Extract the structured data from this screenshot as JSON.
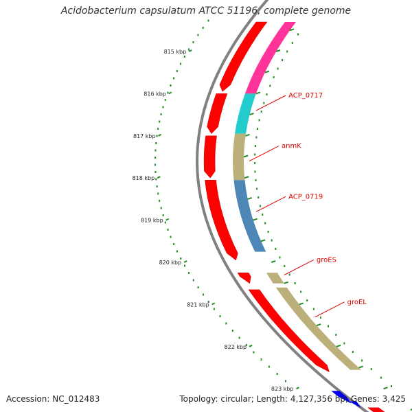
{
  "header": {
    "title": "Acidobacterium capsulatum ATCC 51196, complete genome"
  },
  "footer": {
    "accession": "Accession: NC_012483",
    "summary": "Topology: circular; Length: 4,127,356 bp; Genes: 3,425"
  },
  "ticks": [
    {
      "label": "815 kbp",
      "kbp": 815
    },
    {
      "label": "816 kbp",
      "kbp": 816
    },
    {
      "label": "817 kbp",
      "kbp": 817
    },
    {
      "label": "818 kbp",
      "kbp": 818
    },
    {
      "label": "819 kbp",
      "kbp": 819
    },
    {
      "label": "820 kbp",
      "kbp": 820
    },
    {
      "label": "821 kbp",
      "kbp": 821
    },
    {
      "label": "822 kbp",
      "kbp": 822
    },
    {
      "label": "823 kbp",
      "kbp": 823
    }
  ],
  "gene_labels": [
    {
      "name": "ACP_0717",
      "kbp": 816.4
    },
    {
      "name": "anmK",
      "kbp": 817.6
    },
    {
      "name": "ACP_0719",
      "kbp": 818.8
    },
    {
      "name": "groES",
      "kbp": 820.3
    },
    {
      "name": "groEL",
      "kbp": 821.3
    }
  ],
  "features": {
    "red_arrows": [
      {
        "start": 814.3,
        "end": 815.95
      },
      {
        "start": 816.0,
        "end": 816.95
      },
      {
        "start": 817.0,
        "end": 818.0
      },
      {
        "start": 818.05,
        "end": 819.95
      },
      {
        "start": 820.25,
        "end": 820.5
      },
      {
        "start": 820.65,
        "end": 822.6
      },
      {
        "start": 823.45,
        "end": 823.8
      }
    ],
    "cds_segments": [
      {
        "start": 814.3,
        "end": 816.0,
        "color": "#ff3399"
      },
      {
        "start": 816.0,
        "end": 816.95,
        "color": "#22cccc"
      },
      {
        "start": 816.95,
        "end": 818.05,
        "color": "#bbb07a"
      },
      {
        "start": 818.05,
        "end": 819.75,
        "color": "#4f86b8"
      },
      {
        "start": 820.25,
        "end": 820.5,
        "color": "#bbb07a"
      },
      {
        "start": 820.6,
        "end": 822.55,
        "color": "#bbb07a"
      },
      {
        "start": 823.55,
        "end": 823.8,
        "color": "#ffcccc"
      }
    ],
    "small_blocks": [
      {
        "start": 823.05,
        "end": 823.35,
        "color": "#0000ee"
      },
      {
        "start": 823.3,
        "end": 823.45,
        "color": "#0000ee"
      }
    ]
  },
  "colors": {
    "backbone": "#808080",
    "gc_dots": "#228b22",
    "gene_red": "#ff0000",
    "label_red": "#dd0000"
  }
}
